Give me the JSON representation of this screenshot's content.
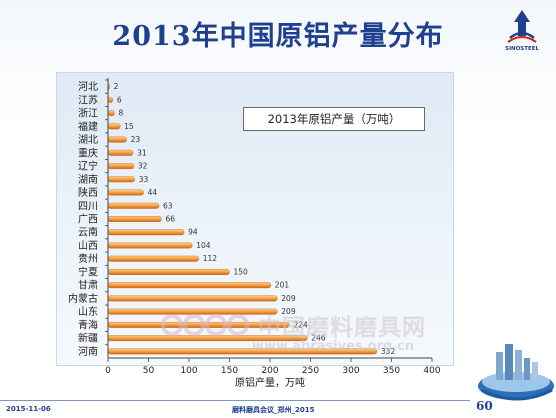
{
  "slide": {
    "title": "2013年中国原铝产量分布",
    "logo_text": "SINOSTEEL",
    "footer_date": "2015-11-06",
    "footer_center": "磨料磨具会议_郑州_2015",
    "page_number": "60",
    "watermark_cn": "中国磨料磨具网",
    "watermark_url": "www.abrasives.org.cn"
  },
  "colors": {
    "title": "#1f3f8f",
    "bar_fill": "#f39a3c",
    "bar_edge": "#c8661a"
  },
  "chart_data": {
    "type": "bar",
    "orientation": "horizontal",
    "legend_label": "2013年原铝产量（万吨）",
    "xlabel": "原铝产量，万吨",
    "ylabel": "",
    "xlim": [
      0,
      400
    ],
    "xticks": [
      0,
      50,
      100,
      150,
      200,
      250,
      300,
      350,
      400
    ],
    "grid": false,
    "legend_position": "top-right",
    "categories": [
      "河北",
      "江苏",
      "浙江",
      "福建",
      "湖北",
      "重庆",
      "辽宁",
      "湖南",
      "陕西",
      "四川",
      "广西",
      "云南",
      "山西",
      "贵州",
      "宁夏",
      "甘肃",
      "内蒙古",
      "山东",
      "青海",
      "新疆",
      "河南"
    ],
    "values": [
      2,
      6,
      8,
      15,
      23,
      31,
      32,
      33,
      44,
      63,
      66,
      94,
      104,
      112,
      150,
      201,
      209,
      209,
      224,
      246,
      332
    ],
    "value_labels": [
      "2",
      "6",
      "8",
      "15",
      "23",
      "31",
      "32",
      "33",
      "44",
      "63",
      "66",
      "94",
      "104",
      "112",
      "150",
      "201",
      "209",
      "209",
      "224",
      "246",
      "332"
    ]
  }
}
